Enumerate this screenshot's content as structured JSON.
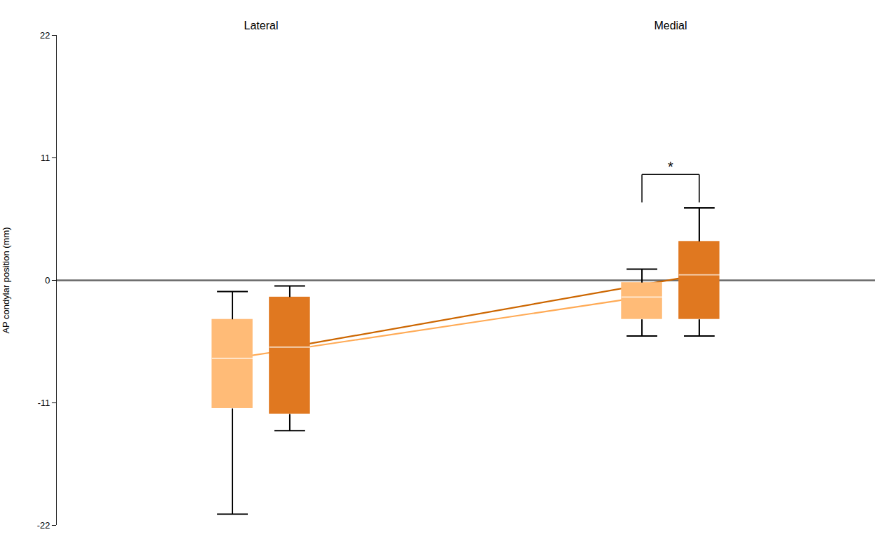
{
  "chart_data": {
    "type": "box",
    "ylabel": "AP condylar position (mm)",
    "ylim": [
      -22,
      22
    ],
    "yticks": [
      -22,
      -11,
      0,
      11,
      22
    ],
    "grid": false,
    "categories": [
      "Lateral",
      "Medial"
    ],
    "series": [
      {
        "color": "#FFBB77",
        "line_color": "#FFAA55",
        "values": [
          -7.0,
          -1.5
        ],
        "sd_low": [
          -11.5,
          -3.5
        ],
        "sd_high": [
          -3.5,
          -0.2
        ],
        "range_low": [
          -21.0,
          -5.0
        ],
        "range_high": [
          -1.0,
          1.0
        ]
      },
      {
        "color": "#E07820",
        "line_color": "#CC6600",
        "values": [
          -6.0,
          0.5
        ],
        "sd_low": [
          -12.0,
          -3.5
        ],
        "sd_high": [
          -1.5,
          3.5
        ],
        "range_low": [
          -13.5,
          -5.0
        ],
        "range_high": [
          -0.5,
          6.5
        ]
      }
    ],
    "annotations": [
      {
        "type": "hline",
        "y": 0,
        "color": "#686868"
      },
      {
        "type": "bracket",
        "text": "*",
        "category": "Medial",
        "y": 9.5,
        "y_start": 7.0
      }
    ]
  }
}
